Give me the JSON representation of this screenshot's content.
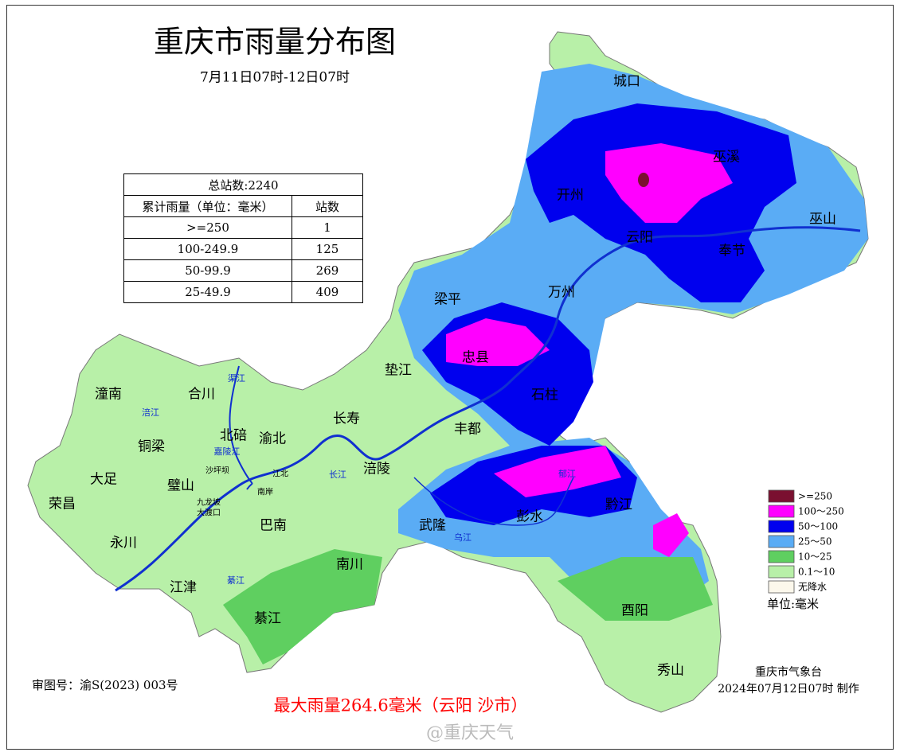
{
  "header": {
    "title": "重庆市雨量分布图",
    "subtitle": "7月11日07时-12日07时"
  },
  "table": {
    "total": "总站数:2240",
    "columns": [
      "累计雨量（单位：毫米）",
      "站数"
    ],
    "rows": [
      [
        ">=250",
        1
      ],
      [
        "100-249.9",
        125
      ],
      [
        "50-99.9",
        269
      ],
      [
        "25-49.9",
        409
      ]
    ]
  },
  "legend": {
    "items": [
      {
        "label": ">=250",
        "color": "#7a1030"
      },
      {
        "label": "100～250",
        "color": "#ff00ff"
      },
      {
        "label": "50～100",
        "color": "#0000ee"
      },
      {
        "label": "25～50",
        "color": "#5aacf5"
      },
      {
        "label": "10～25",
        "color": "#5fcf60"
      },
      {
        "label": "0.1～10",
        "color": "#b8f0a8"
      },
      {
        "label": "无降水",
        "color": "#fcf8ec"
      }
    ],
    "unit": "单位:毫米"
  },
  "places": [
    "城口",
    "巫溪",
    "开州",
    "巫山",
    "云阳",
    "奉节",
    "梁平",
    "万州",
    "忠县",
    "垫江",
    "石柱",
    "潼南",
    "合川",
    "长寿",
    "丰都",
    "北碚",
    "渝北",
    "铜梁",
    "大足",
    "璧山",
    "涪陵",
    "荣昌",
    "巴南",
    "武隆",
    "彭水",
    "黔江",
    "永川",
    "江津",
    "南川",
    "綦江",
    "酉阳",
    "秀山"
  ],
  "districts": [
    "沙坪坝",
    "九龙坡",
    "大渡口",
    "江北",
    "南岸"
  ],
  "rivers": [
    "长江",
    "嘉陵江",
    "涪江",
    "渠江",
    "乌江",
    "綦江",
    "郁江"
  ],
  "footer": {
    "approval": "审图号：渝S(2023) 003号",
    "max_rain": "最大雨量264.6毫米（云阳 沙市）",
    "agency": "重庆市气象台",
    "made": "2024年07月12日07时 制作",
    "watermark": "@重庆天气"
  }
}
